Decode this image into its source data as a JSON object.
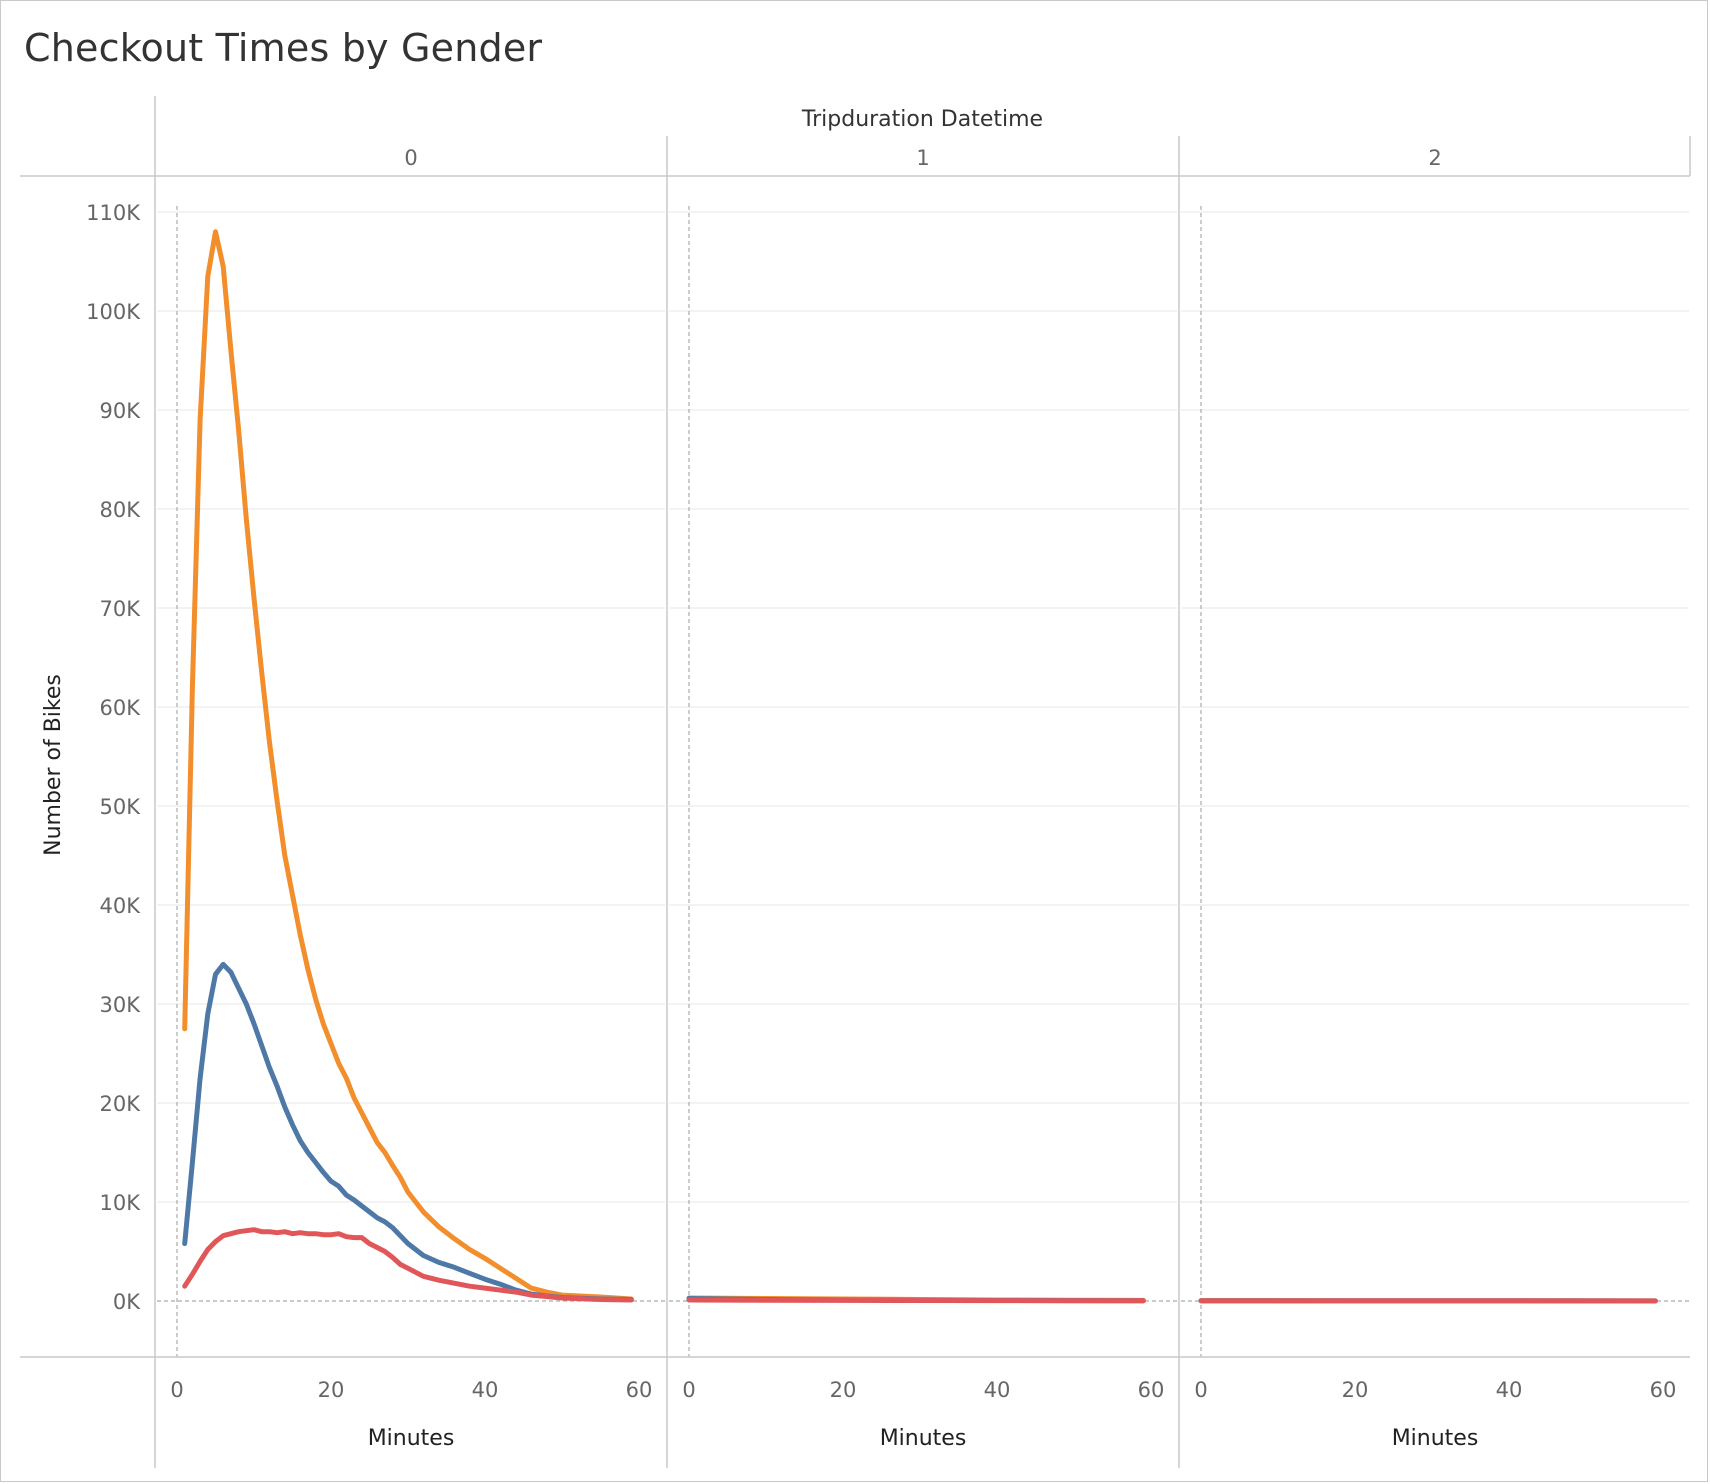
{
  "title": "Checkout Times by Gender",
  "chart_data": {
    "type": "line",
    "title": "Checkout Times by Gender",
    "column_header": "Tripduration Datetime",
    "panels": [
      "0",
      "1",
      "2"
    ],
    "xlabel": "Minutes",
    "ylabel": "Number of Bikes",
    "xlim": [
      0,
      60
    ],
    "ylim": [
      0,
      110000
    ],
    "x_ticks": [
      "0",
      "20",
      "40",
      "60"
    ],
    "y_ticks": [
      "0K",
      "10K",
      "20K",
      "30K",
      "40K",
      "50K",
      "60K",
      "70K",
      "80K",
      "90K",
      "100K",
      "110K"
    ],
    "grid": true,
    "legend": "none",
    "series": [
      {
        "color": "#f28e2b",
        "panels": [
          {
            "x": [
              1,
              2,
              3,
              4,
              5,
              6,
              7,
              8,
              9,
              10,
              11,
              12,
              13,
              14,
              15,
              16,
              17,
              18,
              19,
              20,
              21,
              22,
              23,
              24,
              25,
              26,
              27,
              28,
              29,
              30,
              32,
              34,
              36,
              38,
              40,
              42,
              44,
              46,
              48,
              50,
              55,
              59
            ],
            "y": [
              27500,
              62000,
              89000,
              103500,
              108000,
              104500,
              96000,
              88000,
              79000,
              71000,
              63500,
              56500,
              50500,
              45000,
              41000,
              37000,
              33500,
              30500,
              28000,
              26000,
              24000,
              22500,
              20500,
              19000,
              17500,
              16000,
              15000,
              13700,
              12500,
              11000,
              9000,
              7500,
              6300,
              5200,
              4300,
              3300,
              2300,
              1300,
              900,
              600,
              400,
              200
            ]
          },
          {
            "x": [
              0,
              10,
              20,
              30,
              40,
              50,
              59
            ],
            "y": [
              300,
              250,
              200,
              150,
              100,
              80,
              60
            ]
          },
          {
            "x": [
              0,
              20,
              40,
              59
            ],
            "y": [
              40,
              30,
              20,
              15
            ]
          }
        ]
      },
      {
        "color": "#4e79a7",
        "panels": [
          {
            "x": [
              1,
              2,
              3,
              4,
              5,
              6,
              7,
              8,
              9,
              10,
              11,
              12,
              13,
              14,
              15,
              16,
              17,
              18,
              19,
              20,
              21,
              22,
              23,
              24,
              25,
              26,
              27,
              28,
              29,
              30,
              32,
              34,
              36,
              38,
              40,
              42,
              44,
              46,
              48,
              50,
              55,
              59
            ],
            "y": [
              5800,
              14000,
              22500,
              29000,
              33000,
              34000,
              33200,
              31600,
              30000,
              28000,
              25800,
              23600,
              21700,
              19600,
              17800,
              16200,
              15000,
              14000,
              13000,
              12100,
              11600,
              10700,
              10200,
              9600,
              9000,
              8400,
              8000,
              7400,
              6600,
              5800,
              4600,
              3900,
              3400,
              2800,
              2200,
              1700,
              1100,
              700,
              500,
              350,
              200,
              150
            ]
          },
          {
            "x": [
              0,
              10,
              20,
              30,
              40,
              50,
              59
            ],
            "y": [
              250,
              150,
              100,
              70,
              50,
              40,
              30
            ]
          },
          {
            "x": [
              0,
              20,
              40,
              59
            ],
            "y": [
              30,
              25,
              20,
              15
            ]
          }
        ]
      },
      {
        "color": "#e15759",
        "panels": [
          {
            "x": [
              1,
              2,
              3,
              4,
              5,
              6,
              7,
              8,
              9,
              10,
              11,
              12,
              13,
              14,
              15,
              16,
              17,
              18,
              19,
              20,
              21,
              22,
              23,
              24,
              25,
              26,
              27,
              28,
              29,
              30,
              32,
              34,
              36,
              38,
              40,
              42,
              44,
              46,
              48,
              50,
              55,
              59
            ],
            "y": [
              1500,
              2700,
              4000,
              5200,
              6000,
              6600,
              6800,
              7000,
              7100,
              7200,
              7000,
              7000,
              6900,
              7000,
              6800,
              6900,
              6800,
              6800,
              6700,
              6700,
              6800,
              6500,
              6400,
              6400,
              5800,
              5400,
              5000,
              4400,
              3700,
              3300,
              2500,
              2100,
              1800,
              1500,
              1300,
              1100,
              900,
              600,
              450,
              300,
              150,
              100
            ]
          },
          {
            "x": [
              0,
              10,
              20,
              30,
              40,
              50,
              59
            ],
            "y": [
              100,
              80,
              60,
              50,
              40,
              30,
              20
            ]
          },
          {
            "x": [
              0,
              20,
              40,
              59
            ],
            "y": [
              10,
              10,
              8,
              5
            ]
          }
        ]
      }
    ]
  }
}
